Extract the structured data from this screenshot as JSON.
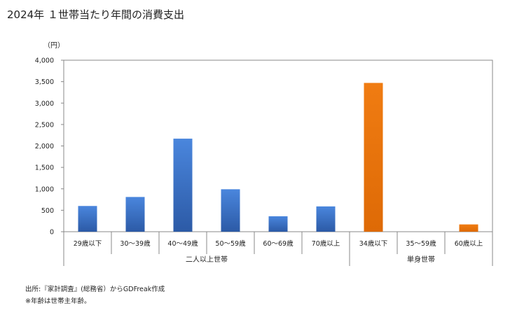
{
  "title": "2024年 １世帯当たり年間の消費支出",
  "notes": {
    "source": "出所:『家計調査』(総務省）からGDFreak作成",
    "age_note": "※年齢は世帯主年齢。"
  },
  "colors": {
    "two_person_bar": "#3a6fc4",
    "single_bar": "#e8710a",
    "axis": "#888888",
    "text": "#222222"
  },
  "chart_data": {
    "type": "bar",
    "title": "2024年 １世帯当たり年間の消費支出",
    "ylabel": "（円）",
    "xlabel": "",
    "ylim": [
      0,
      4000
    ],
    "yticks": [
      0,
      500,
      1000,
      1500,
      2000,
      2500,
      3000,
      3500,
      4000
    ],
    "ytick_labels": [
      "0",
      "500",
      "1,000",
      "1,500",
      "2,000",
      "2,500",
      "3,000",
      "3,500",
      "4,000"
    ],
    "grid": false,
    "categories": [
      "29歳以下",
      "30～39歳",
      "40～49歳",
      "50～59歳",
      "60～69歳",
      "70歳以上",
      "34歳以下",
      "35～59歳",
      "60歳以上"
    ],
    "values": [
      600,
      810,
      2170,
      990,
      360,
      590,
      3470,
      0,
      170
    ],
    "groups": [
      {
        "label": "二人以上世帯",
        "start": 0,
        "count": 6,
        "color": "#3a6fc4"
      },
      {
        "label": "単身世帯",
        "start": 6,
        "count": 3,
        "color": "#e8710a"
      }
    ]
  }
}
